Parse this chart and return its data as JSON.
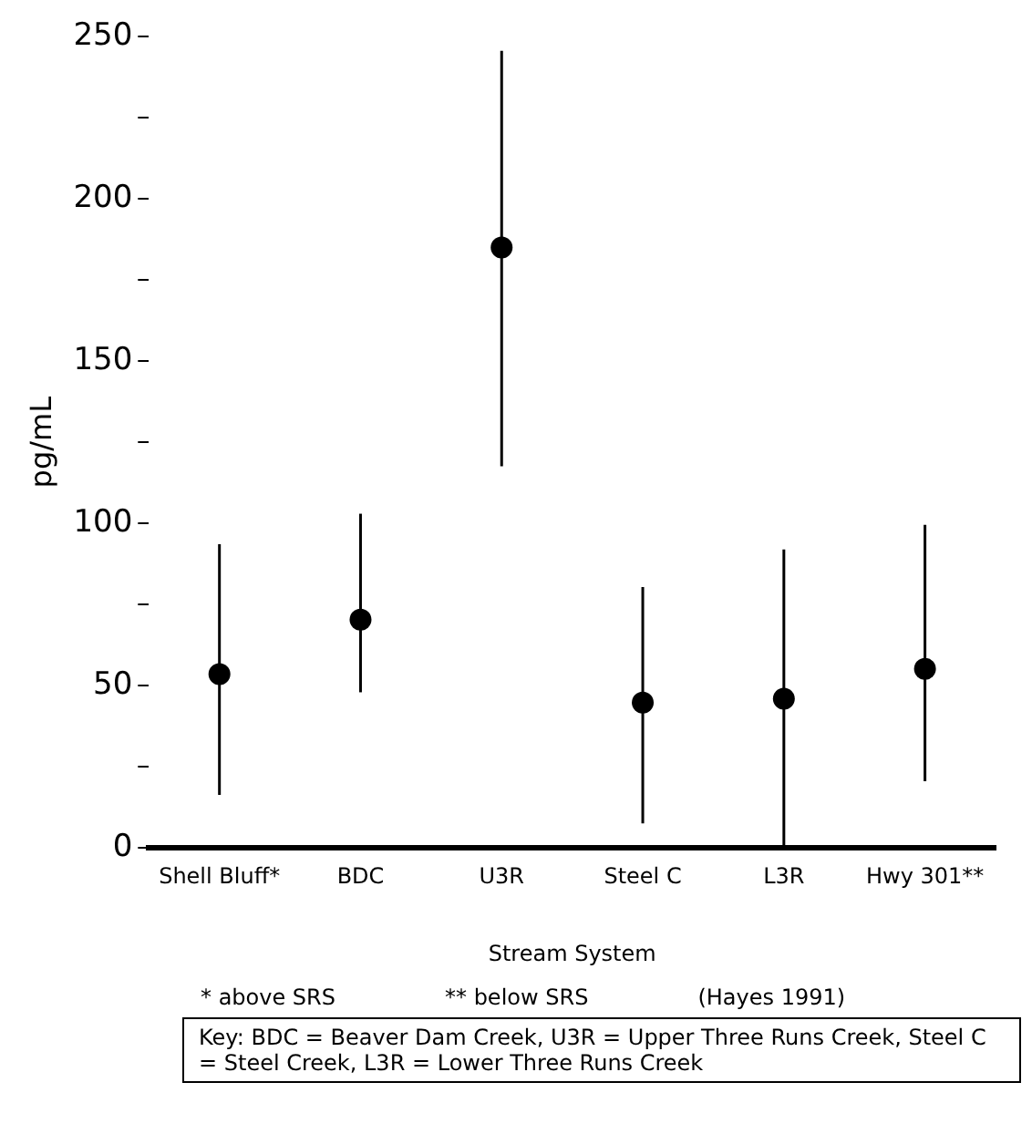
{
  "chart_data": {
    "type": "scatter",
    "xlabel": "Stream System",
    "ylabel": "pg/mL",
    "categories": [
      "Shell Bluff*",
      "BDC",
      "U3R",
      "Steel C",
      "L3R",
      "Hwy 301**"
    ],
    "values": [
      53.6,
      70.4,
      185,
      44.8,
      46,
      55.2
    ],
    "errors": [
      [
        16.4,
        93.6
      ],
      [
        48,
        103
      ],
      [
        117.6,
        245.6
      ],
      [
        7.6,
        80.4
      ],
      [
        0,
        92
      ],
      [
        20.6,
        99.6
      ]
    ],
    "color": "#000000",
    "marker": "circle",
    "ylim": [
      0,
      250
    ],
    "yticks": [
      0,
      {
        "value": 25,
        "label": null
      },
      50,
      {
        "value": 75,
        "label": null
      },
      100,
      {
        "value": 125,
        "label": null
      },
      150,
      {
        "value": 175,
        "label": null
      },
      200,
      {
        "value": 225,
        "label": null
      },
      250
    ],
    "grid": false,
    "legend": false,
    "annotations": [
      "* above SRS",
      "** below SRS",
      "(Hayes 1991)",
      "Key: BDC = Beaver Dam Creek, U3R = Upper Three Runs Creek, Steel C = Steel Creek, L3R = Lower Three Runs Creek"
    ]
  }
}
